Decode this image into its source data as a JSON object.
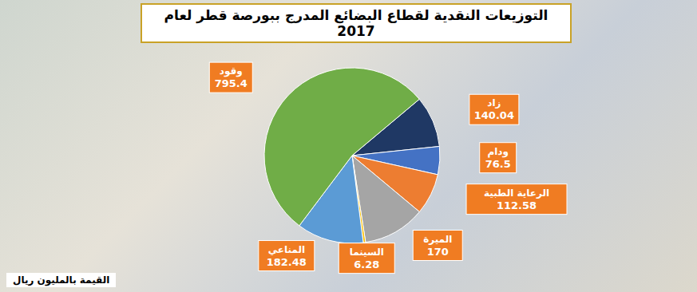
{
  "chart_data": {
    "type": "pie",
    "title": "التوزيعات النقدية لقطاع البضائع المدرج ببورصة قطر لعام 2017",
    "categories": [
      "زاد",
      "ودام",
      "الرعاية الطبية",
      "الميرة",
      "السينما",
      "المناعي",
      "وقود"
    ],
    "values": [
      140.04,
      76.5,
      112.58,
      170,
      6.28,
      182.48,
      795.4
    ],
    "colors": [
      "#1f3864",
      "#4472c4",
      "#ed7d31",
      "#a5a5a5",
      "#ffc000",
      "#5b9bd5",
      "#70ad47"
    ],
    "data_labels": true,
    "annotations": [
      "القيمة بالمليون ريال"
    ]
  }
}
